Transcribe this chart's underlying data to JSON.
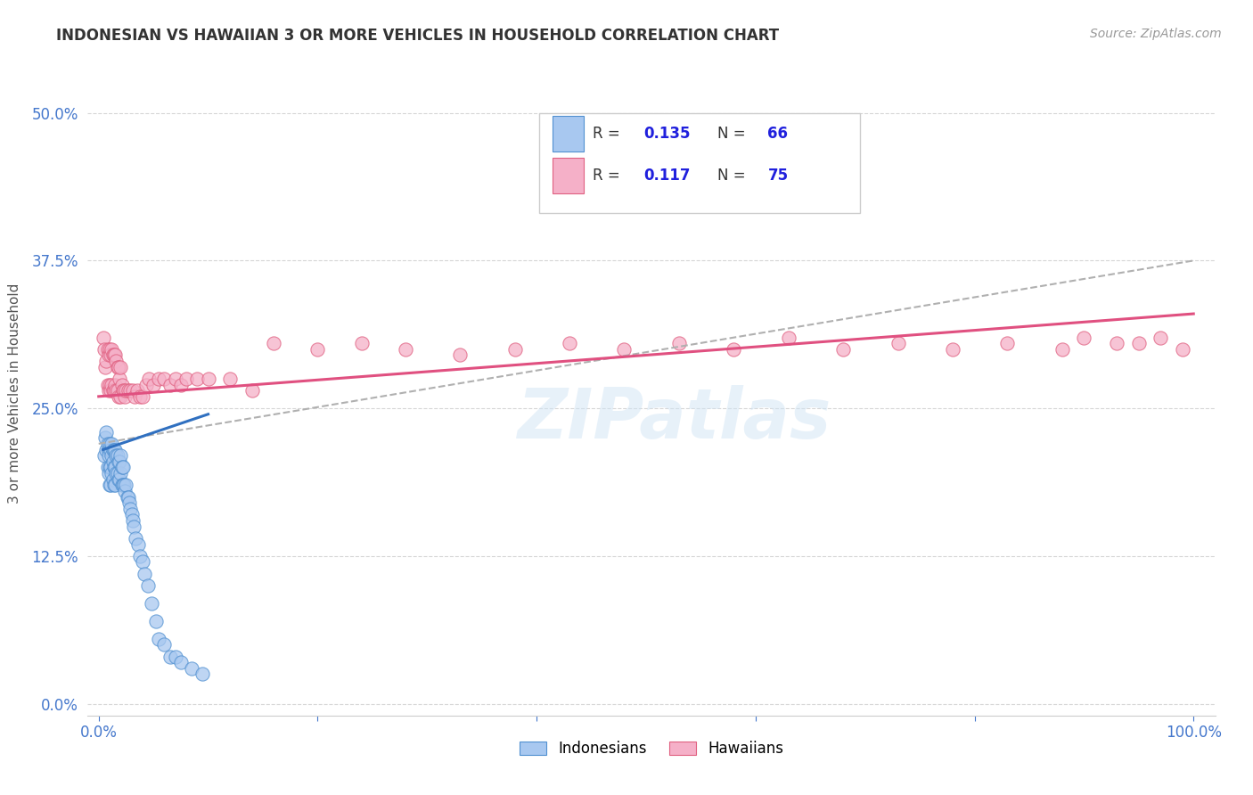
{
  "title": "INDONESIAN VS HAWAIIAN 3 OR MORE VEHICLES IN HOUSEHOLD CORRELATION CHART",
  "source": "Source: ZipAtlas.com",
  "ylabel": "3 or more Vehicles in Household",
  "xlim": [
    -0.01,
    1.02
  ],
  "ylim": [
    -0.01,
    0.535
  ],
  "ytick_vals": [
    0.0,
    0.125,
    0.25,
    0.375,
    0.5
  ],
  "ytick_labels": [
    "0.0%",
    "12.5%",
    "25.0%",
    "37.5%",
    "50.0%"
  ],
  "xtick_vals": [
    0.0,
    0.2,
    0.4,
    0.6,
    0.8,
    1.0
  ],
  "xtick_labels": [
    "0.0%",
    "",
    "",
    "",
    "",
    "100.0%"
  ],
  "indonesian_fill_color": "#a8c8f0",
  "indonesian_edge_color": "#5090d0",
  "hawaiian_fill_color": "#f5b0c8",
  "hawaiian_edge_color": "#e06080",
  "indonesian_line_color": "#3070c0",
  "hawaiian_line_color": "#e05080",
  "dashed_line_color": "#b0b0b0",
  "legend_R_N_color": "#2020dd",
  "tick_color": "#4477cc",
  "watermark_text": "ZIPatlas",
  "R_indonesian": "0.135",
  "N_indonesian": "66",
  "R_hawaiian": "0.117",
  "N_hawaiian": "75",
  "indonesian_x": [
    0.005,
    0.006,
    0.007,
    0.007,
    0.008,
    0.008,
    0.009,
    0.009,
    0.009,
    0.01,
    0.01,
    0.01,
    0.011,
    0.011,
    0.011,
    0.012,
    0.012,
    0.012,
    0.013,
    0.013,
    0.013,
    0.014,
    0.014,
    0.014,
    0.015,
    0.015,
    0.015,
    0.016,
    0.016,
    0.017,
    0.017,
    0.018,
    0.018,
    0.019,
    0.019,
    0.02,
    0.02,
    0.021,
    0.021,
    0.022,
    0.022,
    0.023,
    0.024,
    0.025,
    0.026,
    0.027,
    0.028,
    0.029,
    0.03,
    0.031,
    0.032,
    0.034,
    0.036,
    0.038,
    0.04,
    0.042,
    0.045,
    0.048,
    0.052,
    0.055,
    0.06,
    0.065,
    0.07,
    0.075,
    0.085,
    0.095
  ],
  "indonesian_y": [
    0.21,
    0.225,
    0.215,
    0.23,
    0.22,
    0.2,
    0.215,
    0.195,
    0.21,
    0.22,
    0.2,
    0.185,
    0.215,
    0.2,
    0.185,
    0.22,
    0.21,
    0.195,
    0.215,
    0.205,
    0.19,
    0.215,
    0.2,
    0.185,
    0.215,
    0.2,
    0.185,
    0.21,
    0.195,
    0.21,
    0.195,
    0.205,
    0.19,
    0.205,
    0.19,
    0.21,
    0.195,
    0.2,
    0.185,
    0.2,
    0.185,
    0.185,
    0.18,
    0.185,
    0.175,
    0.175,
    0.17,
    0.165,
    0.16,
    0.155,
    0.15,
    0.14,
    0.135,
    0.125,
    0.12,
    0.11,
    0.1,
    0.085,
    0.07,
    0.055,
    0.05,
    0.04,
    0.04,
    0.035,
    0.03,
    0.025
  ],
  "hawaiian_x": [
    0.004,
    0.005,
    0.006,
    0.007,
    0.008,
    0.008,
    0.009,
    0.009,
    0.01,
    0.01,
    0.011,
    0.011,
    0.012,
    0.012,
    0.013,
    0.013,
    0.014,
    0.014,
    0.015,
    0.015,
    0.016,
    0.016,
    0.017,
    0.017,
    0.018,
    0.018,
    0.019,
    0.02,
    0.02,
    0.021,
    0.022,
    0.023,
    0.024,
    0.025,
    0.027,
    0.029,
    0.031,
    0.033,
    0.035,
    0.038,
    0.04,
    0.043,
    0.046,
    0.05,
    0.055,
    0.06,
    0.065,
    0.07,
    0.075,
    0.08,
    0.09,
    0.1,
    0.12,
    0.14,
    0.16,
    0.2,
    0.24,
    0.28,
    0.33,
    0.38,
    0.43,
    0.48,
    0.53,
    0.58,
    0.63,
    0.68,
    0.73,
    0.78,
    0.83,
    0.88,
    0.9,
    0.93,
    0.95,
    0.97,
    0.99
  ],
  "hawaiian_y": [
    0.31,
    0.3,
    0.285,
    0.29,
    0.3,
    0.27,
    0.295,
    0.265,
    0.3,
    0.27,
    0.295,
    0.265,
    0.3,
    0.27,
    0.295,
    0.265,
    0.295,
    0.265,
    0.295,
    0.27,
    0.29,
    0.265,
    0.285,
    0.265,
    0.285,
    0.26,
    0.275,
    0.285,
    0.26,
    0.27,
    0.265,
    0.265,
    0.26,
    0.265,
    0.265,
    0.265,
    0.265,
    0.26,
    0.265,
    0.26,
    0.26,
    0.27,
    0.275,
    0.27,
    0.275,
    0.275,
    0.27,
    0.275,
    0.27,
    0.275,
    0.275,
    0.275,
    0.275,
    0.265,
    0.305,
    0.3,
    0.305,
    0.3,
    0.295,
    0.3,
    0.305,
    0.3,
    0.305,
    0.3,
    0.31,
    0.3,
    0.305,
    0.3,
    0.305,
    0.3,
    0.31,
    0.305,
    0.305,
    0.31,
    0.3
  ],
  "ind_line_x0": 0.004,
  "ind_line_x1": 0.1,
  "ind_line_y0": 0.215,
  "ind_line_y1": 0.245,
  "haw_line_x0": 0.0,
  "haw_line_x1": 1.0,
  "haw_line_y0": 0.26,
  "haw_line_y1": 0.33,
  "dash_line_x0": 0.0,
  "dash_line_x1": 1.0,
  "dash_line_y0": 0.22,
  "dash_line_y1": 0.375
}
